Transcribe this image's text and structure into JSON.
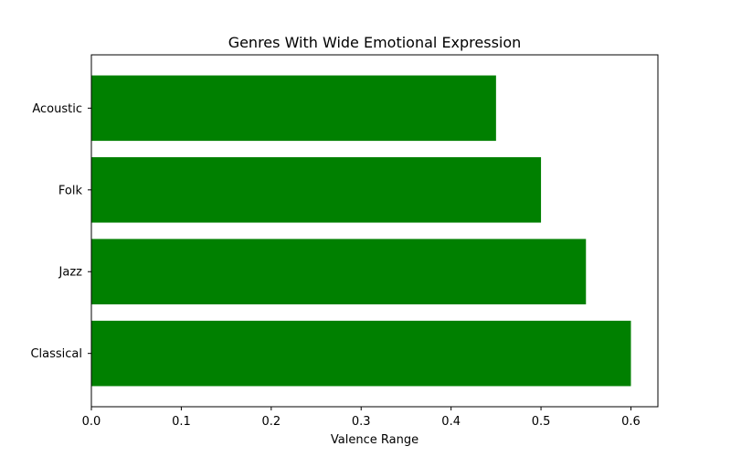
{
  "chart_data": {
    "type": "bar",
    "orientation": "horizontal",
    "title": "Genres With Wide Emotional Expression",
    "xlabel": "Valence Range",
    "ylabel": "",
    "categories": [
      "Acoustic",
      "Folk",
      "Jazz",
      "Classical"
    ],
    "values": [
      0.45,
      0.5,
      0.55,
      0.6
    ],
    "xlim": [
      0.0,
      0.63
    ],
    "xticks": [
      "0.0",
      "0.1",
      "0.2",
      "0.3",
      "0.4",
      "0.5",
      "0.6"
    ],
    "grid": false,
    "legend": "none",
    "bar_color": "#008000"
  }
}
